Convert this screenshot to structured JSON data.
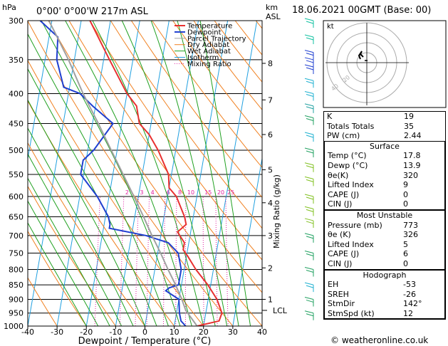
{
  "header": {
    "location": "0°00' 0°00'W 217m ASL",
    "pressure_unit": "hPa",
    "km_label": "km",
    "asl_label": "ASL",
    "datetime": "18.06.2021 00GMT (Base: 00)"
  },
  "legend": [
    "Temperature",
    "Dewpoint",
    "Parcel Trajectory",
    "Dry Adiabat",
    "Wet Adiabat",
    "Isotherm",
    "Mixing Ratio"
  ],
  "colors": {
    "temperature": "#e83030",
    "dewpoint": "#1f3fd0",
    "parcel": "#a0a0a0",
    "dry_adiabat": "#f08020",
    "wet_adiabat": "#20a020",
    "isotherm": "#20a0e0",
    "mixing_ratio": "#e020a0"
  },
  "chart_data": {
    "type": "line",
    "xlabel": "Dewpoint / Temperature (°C)",
    "ylabel": "hPa",
    "right_axis_label": "Mixing Ratio (g/kg)",
    "x_ticks": [
      -40,
      -30,
      -20,
      -10,
      0,
      10,
      20,
      30,
      40
    ],
    "pressure_levels": [
      300,
      350,
      400,
      450,
      500,
      550,
      600,
      650,
      700,
      750,
      800,
      850,
      900,
      950,
      1000
    ],
    "km_ticks": [
      {
        "km": "8",
        "p": 355
      },
      {
        "km": "7",
        "p": 410
      },
      {
        "km": "6",
        "p": 470
      },
      {
        "km": "5",
        "p": 540
      },
      {
        "km": "4",
        "p": 615
      },
      {
        "km": "3",
        "p": 700
      },
      {
        "km": "2",
        "p": 795
      },
      {
        "km": "1",
        "p": 900
      }
    ],
    "lcl_label": "LCL",
    "lcl_pressure": 940,
    "mixing_ratio_labels": [
      "1",
      "2",
      "3",
      "4",
      "6",
      "8",
      "10",
      "15",
      "20",
      "25"
    ],
    "series": [
      {
        "name": "Temperature",
        "points": [
          [
            1000,
            17.8
          ],
          [
            980,
            25
          ],
          [
            950,
            25.5
          ],
          [
            900,
            23
          ],
          [
            850,
            19
          ],
          [
            800,
            14
          ],
          [
            760,
            10.5
          ],
          [
            740,
            8.5
          ],
          [
            720,
            8.5
          ],
          [
            700,
            6.5
          ],
          [
            690,
            5.5
          ],
          [
            670,
            8
          ],
          [
            650,
            7
          ],
          [
            600,
            3
          ],
          [
            580,
            0
          ],
          [
            550,
            -1
          ],
          [
            500,
            -6
          ],
          [
            470,
            -10
          ],
          [
            450,
            -14
          ],
          [
            420,
            -16
          ],
          [
            400,
            -20
          ],
          [
            350,
            -28
          ],
          [
            300,
            -37
          ]
        ]
      },
      {
        "name": "Dewpoint",
        "points": [
          [
            1000,
            13.9
          ],
          [
            980,
            12
          ],
          [
            950,
            11
          ],
          [
            900,
            10
          ],
          [
            870,
            5
          ],
          [
            860,
            6
          ],
          [
            850,
            9
          ],
          [
            800,
            9
          ],
          [
            750,
            7
          ],
          [
            720,
            3
          ],
          [
            700,
            -5
          ],
          [
            680,
            -18
          ],
          [
            670,
            -18
          ],
          [
            650,
            -19
          ],
          [
            600,
            -24
          ],
          [
            550,
            -31
          ],
          [
            520,
            -31
          ],
          [
            500,
            -28
          ],
          [
            450,
            -23
          ],
          [
            420,
            -31
          ],
          [
            400,
            -36
          ],
          [
            390,
            -42
          ],
          [
            350,
            -46
          ],
          [
            320,
            -47
          ],
          [
            300,
            -54
          ]
        ]
      },
      {
        "name": "Parcel Trajectory",
        "points": [
          [
            1000,
            17.8
          ],
          [
            940,
            13
          ],
          [
            900,
            11
          ],
          [
            850,
            8
          ],
          [
            800,
            4.5
          ],
          [
            750,
            1
          ],
          [
            700,
            -3
          ],
          [
            650,
            -7
          ],
          [
            600,
            -11.5
          ],
          [
            550,
            -16.5
          ],
          [
            500,
            -22
          ],
          [
            450,
            -28
          ],
          [
            400,
            -35
          ],
          [
            350,
            -42
          ],
          [
            300,
            -51
          ]
        ]
      }
    ]
  },
  "hodograph": {
    "unit": "kt",
    "ring_labels": [
      "20",
      "40"
    ]
  },
  "indices": [
    {
      "label": "K",
      "value": "19"
    },
    {
      "label": "Totals Totals",
      "value": "35"
    },
    {
      "label": "PW (cm)",
      "value": "2.44"
    }
  ],
  "surface": {
    "title": "Surface",
    "rows": [
      {
        "label": "Temp (°C)",
        "value": "17.8"
      },
      {
        "label": "Dewp (°C)",
        "value": "13.9"
      },
      {
        "label": "θe(K)",
        "value": "320"
      },
      {
        "label": "Lifted Index",
        "value": "9"
      },
      {
        "label": "CAPE (J)",
        "value": "0"
      },
      {
        "label": "CIN (J)",
        "value": "0"
      }
    ]
  },
  "most_unstable": {
    "title": "Most Unstable",
    "rows": [
      {
        "label": "Pressure (mb)",
        "value": "773"
      },
      {
        "label": "θe (K)",
        "value": "326"
      },
      {
        "label": "Lifted Index",
        "value": "5"
      },
      {
        "label": "CAPE (J)",
        "value": "6"
      },
      {
        "label": "CIN (J)",
        "value": "0"
      }
    ]
  },
  "hodograph_table": {
    "title": "Hodograph",
    "rows": [
      {
        "label": "EH",
        "value": "-53"
      },
      {
        "label": "SREH",
        "value": "-26"
      },
      {
        "label": "StmDir",
        "value": "142°"
      },
      {
        "label": "StmSpd (kt)",
        "value": "12"
      }
    ]
  },
  "credit": "© weatheronline.co.uk"
}
